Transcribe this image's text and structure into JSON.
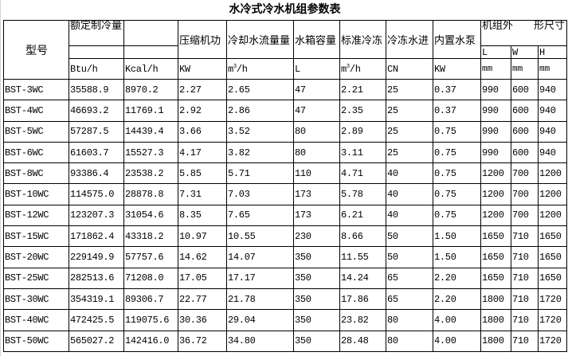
{
  "title": "水冷式冷水机组参数表",
  "headers": {
    "model": "型号",
    "cooling_capacity": "额定制冷量",
    "compressor_power": "压缩机功",
    "cooling_water_flow": "冷却水流量量",
    "tank_volume": "水箱容量",
    "standard_chilled": "标准冷冻",
    "chilled_water_inlet": "冷冻水进",
    "built_in_pump": "内置水泵",
    "dimensions": "机组外　　形尺寸",
    "dim_l": "L",
    "dim_w": "W",
    "dim_h": "H"
  },
  "units": {
    "btu": "Btu/h",
    "kcal": "Kcal/h",
    "kw": "KW",
    "flow_m": "m",
    "flow_sup": "3",
    "flow_h": "/h",
    "liter": "L",
    "std_m": "m",
    "std_sup": "3",
    "std_h": "/h",
    "cn": "CN",
    "pump_kw": "KW",
    "mm_l": "mm",
    "mm_w": "mm",
    "mm_h": "mm"
  },
  "rows": [
    [
      "BST-3WC",
      "35588.9",
      "8970.2",
      "2.27",
      "2.65",
      "47",
      "2.21",
      "25",
      "0.37",
      "990",
      "600",
      "940"
    ],
    [
      "BST-4WC",
      "46693.2",
      "11769.1",
      "2.92",
      "2.86",
      "47",
      "2.35",
      "25",
      "0.37",
      "990",
      "600",
      "940"
    ],
    [
      "BST-5WC",
      "57287.5",
      "14439.4",
      "3.66",
      "3.52",
      "80",
      "2.89",
      "25",
      "0.75",
      "990",
      "600",
      "940"
    ],
    [
      "BST-6WC",
      "61603.7",
      "15527.3",
      "4.17",
      "3.82",
      "80",
      "3.11",
      "25",
      "0.75",
      "990",
      "600",
      "940"
    ],
    [
      "BST-8WC",
      "93386.4",
      "23538.2",
      "5.85",
      "5.71",
      "110",
      "4.71",
      "40",
      "0.75",
      "1200",
      "700",
      "1200"
    ],
    [
      "BST-10WC",
      "114575.0",
      "28878.8",
      "7.31",
      "7.03",
      "173",
      "5.78",
      "40",
      "0.75",
      "1200",
      "700",
      "1200"
    ],
    [
      "BST-12WC",
      "123207.3",
      "31054.6",
      "8.35",
      "7.65",
      "173",
      "6.21",
      "40",
      "0.75",
      "1200",
      "700",
      "1200"
    ],
    [
      "BST-15WC",
      "171862.4",
      "43318.2",
      "10.97",
      "10.55",
      "230",
      "8.66",
      "50",
      "1.50",
      "1650",
      "710",
      "1650"
    ],
    [
      "BST-20WC",
      "229149.9",
      "57757.6",
      "14.62",
      "14.07",
      "350",
      "11.55",
      "50",
      "1.50",
      "1650",
      "710",
      "1650"
    ],
    [
      "BST-25WC",
      "282513.6",
      "71208.0",
      "17.05",
      "17.17",
      "350",
      "14.24",
      "65",
      "2.20",
      "1650",
      "710",
      "1650"
    ],
    [
      "BST-30WC",
      "354319.1",
      "89306.7",
      "22.77",
      "21.78",
      "350",
      "17.86",
      "65",
      "2.20",
      "1800",
      "710",
      "1720"
    ],
    [
      "BST-40WC",
      "472425.5",
      "119075.6",
      "30.36",
      "29.04",
      "350",
      "23.82",
      "80",
      "4.00",
      "1800",
      "710",
      "1720"
    ],
    [
      "BST-50WC",
      "565027.2",
      "142416.0",
      "36.72",
      "34.80",
      "350",
      "28.48",
      "80",
      "4.00",
      "1800",
      "710",
      "1720"
    ]
  ]
}
